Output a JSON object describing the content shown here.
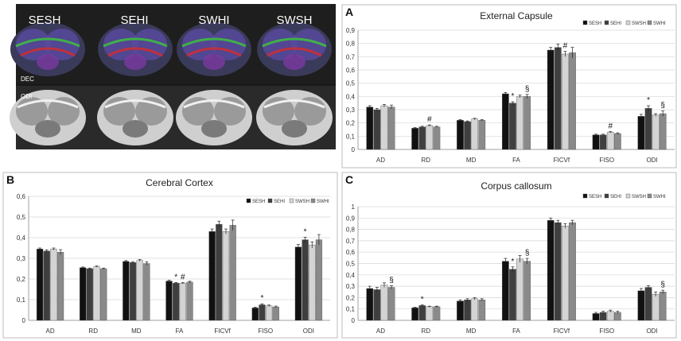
{
  "figure": {
    "brain_panel": {
      "groups": [
        "SESH",
        "SEHI",
        "SWHI",
        "SWSH"
      ],
      "row_labels": [
        "DEC",
        "ODI"
      ]
    },
    "colors": {
      "SESH": "#111111",
      "SEHI": "#3f3f3f",
      "SWSH": "#d4d4d4",
      "SWHI": "#8a8a8a",
      "gridline": "#d6d6d6",
      "axis": "#8c8c8c"
    }
  },
  "chart_data": [
    {
      "panel": "A",
      "type": "bar",
      "title": "External Capsule",
      "categories": [
        "AD",
        "RD",
        "MD",
        "FA",
        "FICVf",
        "FISO",
        "ODI"
      ],
      "ylim": [
        0,
        0.9
      ],
      "yticks": [
        "0",
        "0,1",
        "0,2",
        "0,3",
        "0,4",
        "0,5",
        "0,6",
        "0,7",
        "0,8",
        "0,9"
      ],
      "legend": [
        "SESH",
        "SEHI",
        "SWSH",
        "SWHI"
      ],
      "grid": true,
      "series": [
        {
          "name": "SESH",
          "values": [
            0.32,
            0.16,
            0.22,
            0.42,
            0.75,
            0.11,
            0.25
          ],
          "errors": [
            0.01,
            0.005,
            0.005,
            0.01,
            0.02,
            0.005,
            0.015
          ]
        },
        {
          "name": "SEHI",
          "values": [
            0.3,
            0.17,
            0.21,
            0.35,
            0.77,
            0.11,
            0.31
          ],
          "errors": [
            0.01,
            0.005,
            0.005,
            0.01,
            0.025,
            0.005,
            0.02
          ]
        },
        {
          "name": "SWSH",
          "values": [
            0.33,
            0.18,
            0.23,
            0.4,
            0.72,
            0.13,
            0.26
          ],
          "errors": [
            0.01,
            0.005,
            0.005,
            0.01,
            0.02,
            0.005,
            0.01
          ]
        },
        {
          "name": "SWHI",
          "values": [
            0.32,
            0.17,
            0.22,
            0.4,
            0.73,
            0.12,
            0.27
          ],
          "errors": [
            0.015,
            0.005,
            0.005,
            0.015,
            0.04,
            0.005,
            0.02
          ]
        }
      ],
      "annotations": [
        {
          "category": "RD",
          "series": "SWSH",
          "text": "#"
        },
        {
          "category": "FA",
          "series": "SEHI",
          "text": "*"
        },
        {
          "category": "FA",
          "series": "SWHI",
          "text": "§"
        },
        {
          "category": "FICVf",
          "series": "SWSH",
          "text": "#"
        },
        {
          "category": "FISO",
          "series": "SWSH",
          "text": "#"
        },
        {
          "category": "ODI",
          "series": "SEHI",
          "text": "*"
        },
        {
          "category": "ODI",
          "series": "SWHI",
          "text": "§"
        }
      ]
    },
    {
      "panel": "B",
      "type": "bar",
      "title": "Cerebral Cortex",
      "categories": [
        "AD",
        "RD",
        "MD",
        "FA",
        "FICVf",
        "FISO",
        "ODI"
      ],
      "ylim": [
        0,
        0.6
      ],
      "yticks": [
        "0",
        "0,1",
        "0,2",
        "0,3",
        "0,4",
        "0,5",
        "0,6"
      ],
      "legend": [
        "SESH",
        "SEHI",
        "SWSH",
        "SWHI"
      ],
      "grid": true,
      "series": [
        {
          "name": "SESH",
          "values": [
            0.345,
            0.255,
            0.285,
            0.19,
            0.43,
            0.06,
            0.355
          ],
          "errors": [
            0.005,
            0.003,
            0.004,
            0.004,
            0.012,
            0.004,
            0.012
          ]
        },
        {
          "name": "SEHI",
          "values": [
            0.335,
            0.25,
            0.28,
            0.18,
            0.465,
            0.075,
            0.39
          ],
          "errors": [
            0.006,
            0.003,
            0.004,
            0.003,
            0.015,
            0.005,
            0.012
          ]
        },
        {
          "name": "SWSH",
          "values": [
            0.345,
            0.26,
            0.29,
            0.18,
            0.43,
            0.07,
            0.365
          ],
          "errors": [
            0.005,
            0.003,
            0.004,
            0.003,
            0.012,
            0.004,
            0.015
          ]
        },
        {
          "name": "SWHI",
          "values": [
            0.33,
            0.25,
            0.275,
            0.185,
            0.46,
            0.065,
            0.39
          ],
          "errors": [
            0.012,
            0.003,
            0.008,
            0.004,
            0.025,
            0.004,
            0.025
          ]
        }
      ],
      "annotations": [
        {
          "category": "FA",
          "series": "SEHI",
          "text": "*"
        },
        {
          "category": "FA",
          "series": "SWSH",
          "text": "#"
        },
        {
          "category": "FISO",
          "series": "SEHI",
          "text": "*"
        },
        {
          "category": "ODI",
          "series": "SEHI",
          "text": "*"
        }
      ]
    },
    {
      "panel": "C",
      "type": "bar",
      "title": "Corpus callosum",
      "categories": [
        "AD",
        "RD",
        "MD",
        "FA",
        "FICVf",
        "FISO",
        "ODI"
      ],
      "ylim": [
        0,
        1
      ],
      "yticks": [
        "0",
        "0,1",
        "0,2",
        "0,3",
        "0,4",
        "0,5",
        "0,6",
        "0,7",
        "0,8",
        "0,9",
        "1"
      ],
      "legend": [
        "SESH",
        "SEHI",
        "SWSH",
        "SWHI"
      ],
      "grid": true,
      "series": [
        {
          "name": "SESH",
          "values": [
            0.28,
            0.11,
            0.17,
            0.52,
            0.88,
            0.06,
            0.26
          ],
          "errors": [
            0.02,
            0.005,
            0.01,
            0.025,
            0.02,
            0.01,
            0.02
          ]
        },
        {
          "name": "SEHI",
          "values": [
            0.27,
            0.13,
            0.18,
            0.45,
            0.86,
            0.07,
            0.29
          ],
          "errors": [
            0.02,
            0.005,
            0.01,
            0.02,
            0.02,
            0.01,
            0.015
          ]
        },
        {
          "name": "SWSH",
          "values": [
            0.31,
            0.12,
            0.19,
            0.54,
            0.83,
            0.08,
            0.23
          ],
          "errors": [
            0.02,
            0.005,
            0.01,
            0.03,
            0.02,
            0.01,
            0.02
          ]
        },
        {
          "name": "SWHI",
          "values": [
            0.29,
            0.12,
            0.18,
            0.52,
            0.86,
            0.07,
            0.25
          ],
          "errors": [
            0.015,
            0.005,
            0.01,
            0.025,
            0.02,
            0.01,
            0.015
          ]
        }
      ],
      "annotations": [
        {
          "category": "AD",
          "series": "SWHI",
          "text": "§"
        },
        {
          "category": "RD",
          "series": "SEHI",
          "text": "*"
        },
        {
          "category": "FA",
          "series": "SEHI",
          "text": "*"
        },
        {
          "category": "FA",
          "series": "SWHI",
          "text": "§"
        },
        {
          "category": "ODI",
          "series": "SWHI",
          "text": "§"
        }
      ]
    }
  ]
}
